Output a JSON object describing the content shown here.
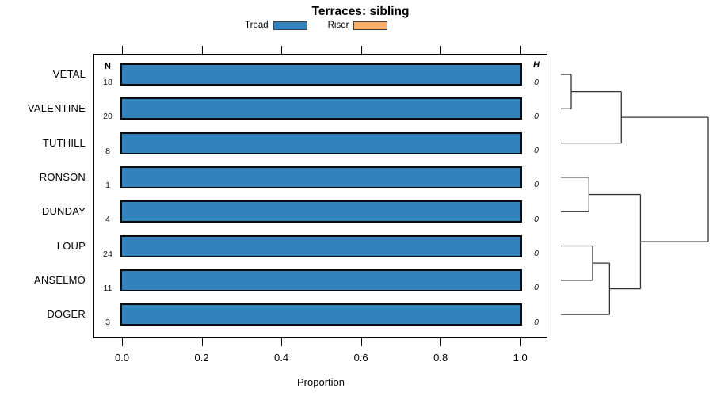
{
  "title": "Terraces: sibling",
  "legend": [
    {
      "label": "Tread",
      "color": "#3182BD"
    },
    {
      "label": "Riser",
      "color": "#FDAE6B"
    }
  ],
  "columns": {
    "n_header": "N",
    "h_header": "H"
  },
  "axis": {
    "label": "Proportion",
    "tick_labels": [
      "0.0",
      "0.2",
      "0.4",
      "0.6",
      "0.8",
      "1.0"
    ]
  },
  "colors": {
    "tread_blue": "#3182BD",
    "riser_orange": "#FDAE6B",
    "bar_border": "#0b0b0b",
    "axis_black": "#000000",
    "dendrogram_line": "#333333"
  },
  "chart_data": {
    "type": "bar",
    "orientation": "horizontal",
    "title": "Terraces: sibling",
    "xlabel": "Proportion",
    "xlim": [
      0,
      1
    ],
    "xticks": [
      0.0,
      0.2,
      0.4,
      0.6,
      0.8,
      1.0
    ],
    "categories": [
      "VETAL",
      "VALENTINE",
      "TUTHILL",
      "RONSON",
      "DUNDAY",
      "LOUP",
      "ANSELMO",
      "DOGER"
    ],
    "series": [
      {
        "name": "Tread",
        "color": "#3182BD",
        "values": [
          1.0,
          1.0,
          1.0,
          1.0,
          1.0,
          1.0,
          1.0,
          1.0
        ]
      },
      {
        "name": "Riser",
        "color": "#FDAE6B",
        "values": [
          0,
          0,
          0,
          0,
          0,
          0,
          0,
          0
        ]
      }
    ],
    "n_values": [
      18,
      20,
      8,
      1,
      4,
      24,
      11,
      3
    ],
    "h_values": [
      "0",
      "0",
      "0",
      "0",
      "0",
      "0",
      "0",
      "0"
    ],
    "legend_position": "top",
    "grid": false,
    "dendrogram": {
      "side": "right",
      "leaves": [
        "VETAL",
        "VALENTINE",
        "TUTHILL",
        "RONSON",
        "DUNDAY",
        "LOUP",
        "ANSELMO",
        "DOGER"
      ],
      "merges": [
        {
          "a": "L0",
          "b": "L1",
          "h": 0.07
        },
        {
          "a": "M0",
          "b": "L2",
          "h": 0.41
        },
        {
          "a": "L3",
          "b": "L4",
          "h": 0.19
        },
        {
          "a": "L5",
          "b": "L6",
          "h": 0.215
        },
        {
          "a": "M3",
          "b": "L7",
          "h": 0.33
        },
        {
          "a": "M2",
          "b": "M4",
          "h": 0.54
        },
        {
          "a": "M1",
          "b": "M5",
          "h": 1.0
        }
      ]
    }
  }
}
